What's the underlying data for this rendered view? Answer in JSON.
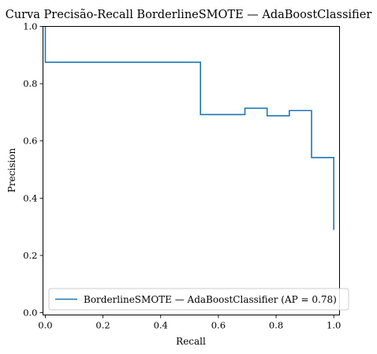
{
  "chart_data": {
    "type": "line",
    "title": "Curva Precisão-Recall BorderlineSMOTE — AdaBoostClassifier",
    "xlabel": "Recall",
    "ylabel": "Precision",
    "xlim": [
      -0.008,
      1.02
    ],
    "ylim": [
      -0.008,
      1.0
    ],
    "x_ticks": [
      0.0,
      0.2,
      0.4,
      0.6,
      0.8,
      1.0
    ],
    "x_tick_labels": [
      "0.0",
      "0.2",
      "0.4",
      "0.6",
      "0.8",
      "1.0"
    ],
    "y_ticks": [
      0.0,
      0.2,
      0.4,
      0.6,
      0.8,
      1.0
    ],
    "y_tick_labels": [
      "0.0",
      "0.2",
      "0.4",
      "0.6",
      "0.8",
      "1.0"
    ],
    "grid": false,
    "legend_position": "lower-left",
    "series": [
      {
        "name": "BorderlineSMOTE — AdaBoostClassifier (AP = 0.78)",
        "color": "#1f77b4",
        "step": "post",
        "x": [
          0.0,
          0.0,
          0.538,
          0.538,
          0.692,
          0.692,
          0.769,
          0.769,
          0.846,
          0.846,
          0.923,
          0.923,
          1.0,
          1.0
        ],
        "y": [
          1.0,
          0.875,
          0.875,
          0.692,
          0.692,
          0.714,
          0.714,
          0.688,
          0.688,
          0.706,
          0.706,
          0.542,
          0.542,
          0.289
        ]
      }
    ]
  }
}
